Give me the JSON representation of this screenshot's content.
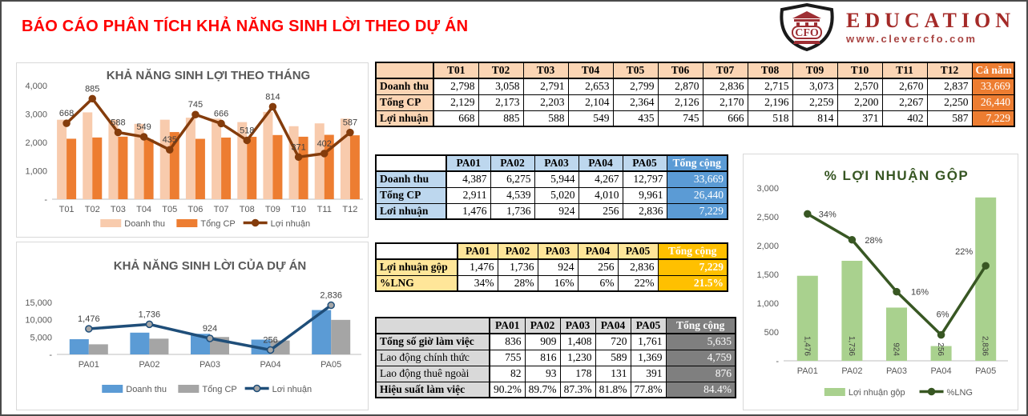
{
  "page": {
    "title": "BÁO CÁO PHÂN TÍCH KHẢ NĂNG SINH LỜI THEO DỰ ÁN"
  },
  "logo": {
    "monogram": "CFO",
    "brand": "EDUCATION",
    "url": "www.clevercfo.com"
  },
  "colors": {
    "title_red": "#FF0000",
    "brand_red": "#A42A28",
    "chart_title_gray": "#595959",
    "chart_title_green": "#375623"
  },
  "tables": {
    "monthly": {
      "palette": {
        "header_bg": "#FBD5B4",
        "corner_bg": "#FBD5B4",
        "total_bg": "#ED7D31"
      },
      "columns": [
        "",
        "T01",
        "T02",
        "T03",
        "T04",
        "T05",
        "T06",
        "T07",
        "T08",
        "T09",
        "T10",
        "T11",
        "T12",
        "Cả năm"
      ],
      "rows": [
        {
          "label": "Doanh thu",
          "values": [
            "2,798",
            "3,058",
            "2,791",
            "2,653",
            "2,799",
            "2,870",
            "2,836",
            "2,715",
            "3,073",
            "2,570",
            "2,670",
            "2,837"
          ],
          "total": "33,669"
        },
        {
          "label": "Tổng CP",
          "values": [
            "2,129",
            "2,173",
            "2,203",
            "2,104",
            "2,364",
            "2,126",
            "2,170",
            "2,196",
            "2,259",
            "2,200",
            "2,267",
            "2,250"
          ],
          "total": "26,440"
        },
        {
          "label": "Lợi nhuận",
          "values": [
            "668",
            "885",
            "588",
            "549",
            "435",
            "745",
            "666",
            "518",
            "814",
            "371",
            "402",
            "587"
          ],
          "total": "7,229"
        }
      ]
    },
    "project": {
      "palette": {
        "header_bg": "#BDD7EE",
        "corner_bg": "#FFFFFF",
        "total_bg": "#5B9BD5"
      },
      "columns": [
        "",
        "PA01",
        "PA02",
        "PA03",
        "PA04",
        "PA05",
        "Tổng cộng"
      ],
      "rows": [
        {
          "label": "Doanh thu",
          "values": [
            "4,387",
            "6,275",
            "5,944",
            "4,267",
            "12,797"
          ],
          "total": "33,669"
        },
        {
          "label": "Tổng CP",
          "values": [
            "2,911",
            "4,539",
            "5,020",
            "4,010",
            "9,961"
          ],
          "total": "26,440"
        },
        {
          "label": "Lơi nhuận",
          "values": [
            "1,476",
            "1,736",
            "924",
            "256",
            "2,836"
          ],
          "total": "7,229"
        }
      ]
    },
    "gross": {
      "palette": {
        "header_bg": "#FFE699",
        "corner_bg": "#FFFFFF",
        "total_bg": "#FFC000"
      },
      "total_bold": true,
      "columns": [
        "",
        "PA01",
        "PA02",
        "PA03",
        "PA04",
        "PA05",
        "Tổng cộng"
      ],
      "rows": [
        {
          "label": "Lợi nhuận gộp",
          "values": [
            "1,476",
            "1,736",
            "924",
            "256",
            "2,836"
          ],
          "total": "7,229"
        },
        {
          "label": "%LNG",
          "values": [
            "34%",
            "28%",
            "16%",
            "6%",
            "22%"
          ],
          "total": "21.5%"
        }
      ]
    },
    "labor": {
      "palette": {
        "header_bg": "#D9D9D9",
        "corner_bg": "#D9D9D9",
        "total_bg": "#7F7F7F"
      },
      "columns": [
        "",
        "PA01",
        "PA02",
        "PA03",
        "PA04",
        "PA05",
        "Tổng cộng"
      ],
      "rows": [
        {
          "label": "Tổng số giờ làm việc",
          "bold": true,
          "values": [
            "836",
            "909",
            "1,408",
            "720",
            "1,761"
          ],
          "total": "5,635"
        },
        {
          "label": "Lao động chính thức",
          "bold": false,
          "values": [
            "755",
            "816",
            "1,230",
            "589",
            "1,369"
          ],
          "total": "4,759"
        },
        {
          "label": "Lao động thuê ngoài",
          "bold": false,
          "values": [
            "82",
            "93",
            "178",
            "131",
            "391"
          ],
          "total": "876"
        },
        {
          "label": "Hiệu suất làm việc",
          "bold": true,
          "values": [
            "90.2%",
            "89.7%",
            "87.3%",
            "81.8%",
            "77.8%"
          ],
          "total": "84.4%"
        }
      ]
    }
  },
  "chart_data": [
    {
      "type": "bar+line",
      "title": "KHẢ NĂNG SINH LỢI THEO THÁNG",
      "categories": [
        "T01",
        "T02",
        "T03",
        "T04",
        "T05",
        "T06",
        "T07",
        "T08",
        "T09",
        "T10",
        "T11",
        "T12"
      ],
      "primary_axis": {
        "max": 4000,
        "ticks": [
          "4,000",
          "3,000",
          "2,000",
          "1,000",
          "-"
        ]
      },
      "secondary_axis": {
        "max": 1000
      },
      "legend_position": "bottom",
      "series": [
        {
          "name": "Doanh thu",
          "type": "bar",
          "color": "#F8CBAD",
          "values": [
            2798,
            3058,
            2791,
            2653,
            2799,
            2870,
            2836,
            2715,
            3073,
            2570,
            2670,
            2837
          ]
        },
        {
          "name": "Tổng CP",
          "type": "bar",
          "color": "#ED7D31",
          "values": [
            2129,
            2173,
            2203,
            2104,
            2364,
            2126,
            2170,
            2196,
            2259,
            2200,
            2267,
            2250
          ]
        },
        {
          "name": "Lợi nhuận",
          "type": "line",
          "color": "#843C0C",
          "axis": "secondary",
          "values": [
            668,
            885,
            588,
            549,
            435,
            745,
            666,
            518,
            814,
            371,
            402,
            587
          ],
          "labels": [
            "668",
            "885",
            "588",
            "549",
            "435",
            "745",
            "666",
            "518",
            "814",
            "371",
            "402",
            "587"
          ]
        }
      ]
    },
    {
      "type": "bar+line",
      "title": "KHẢ NĂNG SINH LỜI CỦA DỰ ÁN",
      "categories": [
        "PA01",
        "PA02",
        "PA03",
        "PA04",
        "PA05"
      ],
      "primary_axis": {
        "max": 15000,
        "ticks": [
          "15,000",
          "10,000",
          "5,000",
          "-"
        ]
      },
      "secondary_axis": {
        "max": 3000
      },
      "legend_position": "bottom",
      "series": [
        {
          "name": "Doanh thu",
          "type": "bar",
          "color": "#5B9BD5",
          "values": [
            4387,
            6275,
            5944,
            4267,
            12797
          ]
        },
        {
          "name": "Tổng CP",
          "type": "bar",
          "color": "#A5A5A5",
          "values": [
            2911,
            4539,
            5020,
            4010,
            9961
          ]
        },
        {
          "name": "Lơi nhuận",
          "type": "line",
          "color": "#1F4E79",
          "marker_fill": "#A6A6A6",
          "axis": "secondary",
          "values": [
            1476,
            1736,
            924,
            256,
            2836
          ],
          "labels": [
            "1,476",
            "1,736",
            "924",
            "256",
            "2,836"
          ]
        }
      ]
    },
    {
      "type": "bar+line",
      "title": "% LỢI NHUẬN GỘP",
      "categories": [
        "PA01",
        "PA02",
        "PA03",
        "PA04",
        "PA05"
      ],
      "primary_axis": {
        "max": 3000,
        "ticks": [
          "3,000",
          "2,500",
          "2,000",
          "1,500",
          "1,000",
          "500",
          "-"
        ]
      },
      "secondary_axis": {
        "max": 40
      },
      "legend_position": "bottom",
      "series": [
        {
          "name": "Lợi nhuận gộp",
          "type": "bar",
          "color": "#A9D18E",
          "values": [
            1476,
            1736,
            924,
            256,
            2836
          ],
          "value_labels": [
            "1,476",
            "1,736",
            "924",
            "256",
            "2,836"
          ]
        },
        {
          "name": "%LNG",
          "type": "line",
          "color": "#385723",
          "axis": "secondary",
          "values": [
            34,
            28,
            16,
            6,
            22
          ],
          "labels": [
            "34%",
            "28%",
            "16%",
            "6%",
            "22%"
          ]
        }
      ]
    }
  ]
}
